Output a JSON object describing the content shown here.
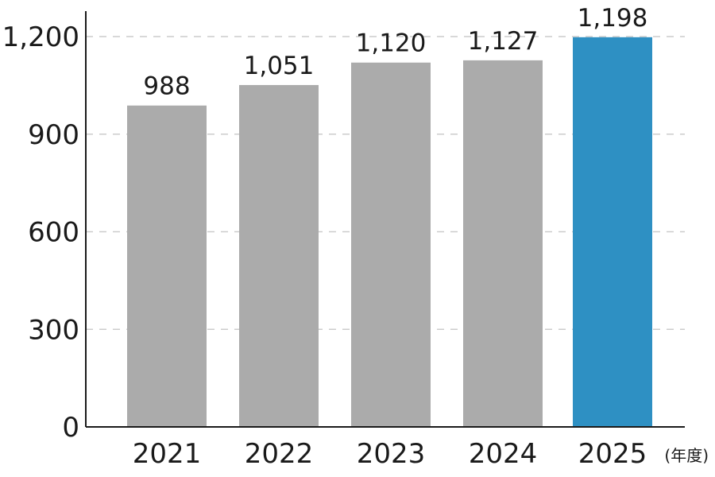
{
  "chart_data": {
    "type": "bar",
    "title": "",
    "xlabel": "",
    "ylabel": "",
    "x_unit": "(年度)",
    "categories": [
      "2021",
      "2022",
      "2023",
      "2024",
      "2025"
    ],
    "values": [
      988,
      1051,
      1120,
      1127,
      1198
    ],
    "value_labels": [
      "988",
      "1,051",
      "1,120",
      "1,127",
      "1,198"
    ],
    "ylim": [
      0,
      1200
    ],
    "yticks": [
      0,
      300,
      600,
      900,
      1200
    ],
    "ytick_labels": [
      "0",
      "300",
      "600",
      "900",
      "1,200"
    ],
    "grid": "horizontal-dashed",
    "legend": "none",
    "colors": {
      "default_bar": "#ababab",
      "highlight_bar": "#2e90c3",
      "grid": "#cccccc",
      "axis": "#1a1a1a"
    },
    "highlight_index": 4
  }
}
